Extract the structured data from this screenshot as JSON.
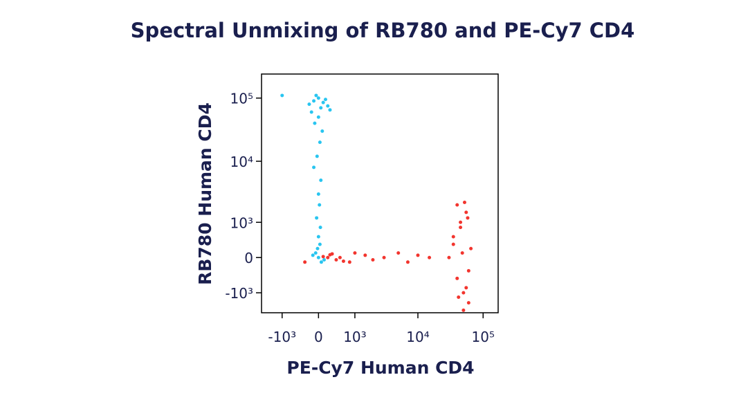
{
  "chart_data": {
    "type": "scatter",
    "title": "Spectral Unmixing of RB780 and PE-Cy7 CD4",
    "xlabel": "PE-Cy7 Human CD4",
    "ylabel": "RB780 Human CD4",
    "xscale": "biexponential",
    "yscale": "biexponential",
    "xlim": [
      -2200,
      170000
    ],
    "ylim": [
      -2200,
      240000
    ],
    "xticks": [
      {
        "value": -1000,
        "label": "-10³"
      },
      0,
      {
        "value": 1000,
        "label": "10³"
      },
      {
        "value": 10000,
        "label": "10⁴"
      },
      {
        "value": 100000,
        "label": "10⁵"
      }
    ],
    "yticks": [
      {
        "value": -1000,
        "label": "-10³"
      },
      0,
      {
        "value": 1000,
        "label": "10³"
      },
      {
        "value": 10000,
        "label": "10⁴"
      },
      {
        "value": 100000,
        "label": "10⁵"
      }
    ],
    "series": [
      {
        "color": "#29c5f0",
        "x": [
          -200,
          -100,
          0,
          100,
          200,
          -150,
          50,
          150,
          -50,
          250,
          0,
          -80,
          80,
          30,
          -30,
          -100,
          50,
          0,
          20,
          -40,
          -60,
          0,
          60,
          -20,
          30,
          120,
          -120,
          0,
          40,
          -1000
        ],
        "values": [
          80000,
          90000,
          100000,
          85000,
          75000,
          60000,
          70000,
          95000,
          110000,
          65000,
          50000,
          40000,
          30000,
          20000,
          12000,
          8000,
          5000,
          3000,
          2000,
          1200,
          100,
          0,
          -100,
          200,
          300,
          -50,
          50,
          500,
          800,
          110000
        ]
      },
      {
        "color": "#f2352e",
        "x": [
          30000,
          35000,
          40000,
          45000,
          50000,
          55000,
          60000,
          65000,
          40000,
          50000,
          45000,
          55000,
          35000,
          60000,
          48000,
          52000,
          42000,
          58000,
          500,
          800,
          1000,
          1500,
          2000,
          3000,
          5000,
          7000,
          10000,
          15000,
          200,
          400,
          300,
          600,
          -300,
          100,
          250
        ],
        "values": [
          0,
          500,
          -500,
          1000,
          -1000,
          1500,
          -1500,
          200,
          2000,
          -2000,
          800,
          -800,
          300,
          -300,
          100,
          2200,
          -1200,
          1200,
          0,
          -100,
          100,
          50,
          -50,
          0,
          100,
          -100,
          50,
          0,
          0,
          -50,
          80,
          -80,
          -100,
          20,
          60
        ]
      }
    ]
  }
}
